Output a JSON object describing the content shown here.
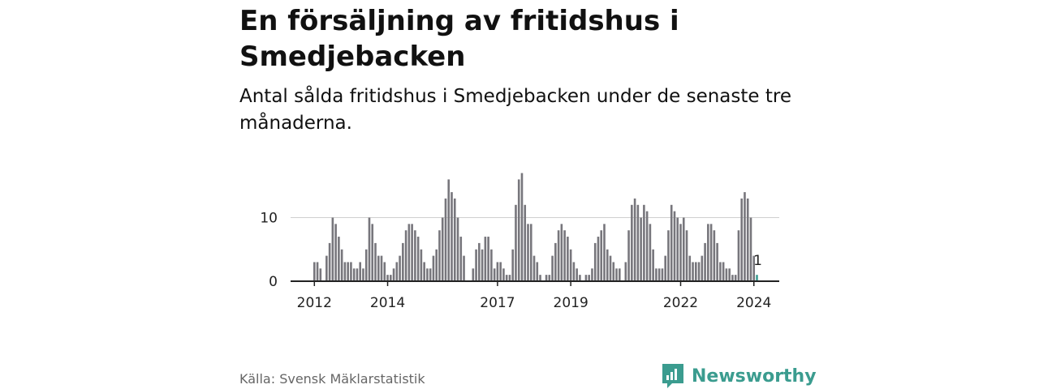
{
  "title": "En försäljning av fritidshus i Smedjebacken",
  "subtitle": "Antal sålda fritidshus i Smedjebacken under de senaste tre månaderna.",
  "source": "Källa: Svensk Mäklarstatistik",
  "brand": "Newsworthy",
  "colors": {
    "bar": "#77767c",
    "highlight": "#3d9e93",
    "brand": "#3b9c8f",
    "grid": "#d0d0d0",
    "axis": "#222222"
  },
  "chart_data": {
    "type": "bar",
    "title": "En försäljning av fritidshus i Smedjebacken",
    "subtitle": "Antal sålda fritidshus i Smedjebacken under de senaste tre månaderna.",
    "xlabel": "",
    "ylabel": "",
    "ylim": [
      0,
      17
    ],
    "yticks": [
      0,
      10
    ],
    "xticks": [
      {
        "label": "2012",
        "index": 0
      },
      {
        "label": "2014",
        "index": 24
      },
      {
        "label": "2017",
        "index": 60
      },
      {
        "label": "2019",
        "index": 84
      },
      {
        "label": "2022",
        "index": 120
      },
      {
        "label": "2024",
        "index": 144
      }
    ],
    "x_start": "2012-01",
    "interval": "month",
    "values": [
      3,
      3,
      2,
      0,
      4,
      6,
      10,
      9,
      7,
      5,
      3,
      3,
      3,
      2,
      2,
      3,
      2,
      5,
      10,
      9,
      6,
      4,
      4,
      3,
      1,
      1,
      2,
      3,
      4,
      6,
      8,
      9,
      9,
      8,
      7,
      5,
      3,
      2,
      2,
      4,
      5,
      8,
      10,
      13,
      16,
      14,
      13,
      10,
      7,
      4,
      0,
      0,
      2,
      5,
      6,
      5,
      7,
      7,
      5,
      2,
      3,
      3,
      2,
      1,
      1,
      5,
      12,
      16,
      17,
      12,
      9,
      9,
      4,
      3,
      1,
      0,
      1,
      1,
      4,
      6,
      8,
      9,
      8,
      7,
      5,
      3,
      2,
      1,
      0,
      1,
      1,
      2,
      6,
      7,
      8,
      9,
      5,
      4,
      3,
      2,
      2,
      0,
      3,
      8,
      12,
      13,
      12,
      10,
      12,
      11,
      9,
      5,
      2,
      2,
      2,
      4,
      8,
      12,
      11,
      10,
      9,
      10,
      8,
      4,
      3,
      3,
      3,
      4,
      6,
      9,
      9,
      8,
      6,
      3,
      3,
      2,
      2,
      1,
      1,
      8,
      13,
      14,
      13,
      10,
      4,
      1
    ],
    "highlight_index": 145,
    "highlight_label": "1"
  }
}
